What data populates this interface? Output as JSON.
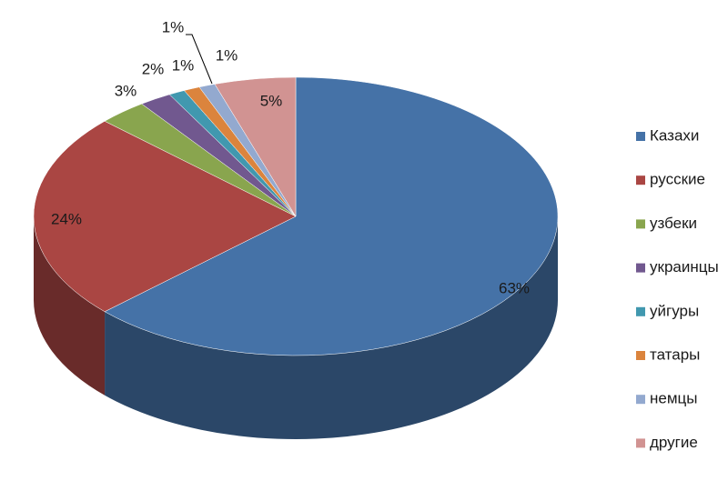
{
  "chart_data": {
    "type": "pie",
    "categories": [
      "Казахи",
      "русские",
      "узбеки",
      "украинцы",
      "уйгуры",
      "татары",
      "немцы",
      "другие"
    ],
    "values": [
      63,
      24,
      3,
      2,
      1,
      1,
      1,
      5
    ],
    "value_labels": [
      "63%",
      "24%",
      "3%",
      "2%",
      "1%",
      "1%",
      "1%",
      "5%"
    ],
    "colors": [
      "#4572a7",
      "#aa4643",
      "#89a54e",
      "#71588f",
      "#4198af",
      "#db843d",
      "#93a9cf",
      "#d19392"
    ],
    "legend": "right"
  }
}
